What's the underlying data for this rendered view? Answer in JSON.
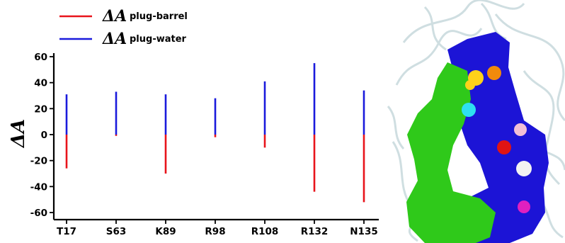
{
  "chart_data": {
    "type": "bar",
    "title": "",
    "xlabel": "",
    "ylabel": "ΔA",
    "ylim": [
      -65,
      65
    ],
    "yticks": [
      60,
      40,
      20,
      0,
      -20,
      -40,
      -60
    ],
    "grid": false,
    "legend_position": "top-left",
    "categories": [
      "T17",
      "S63",
      "K89",
      "R98",
      "R108",
      "R132",
      "N135"
    ],
    "series": [
      {
        "name": "plug-barrel",
        "symbol": "ΔA",
        "color": "#e8141b",
        "values": [
          -26,
          -1,
          -30,
          -2,
          -10,
          -44,
          -52
        ]
      },
      {
        "name": "plug-water",
        "symbol": "ΔA",
        "color": "#1a1adc",
        "values": [
          31,
          33,
          31,
          28,
          41,
          55,
          34
        ]
      }
    ]
  },
  "protein_image": {
    "description_icon": "protein-structure-icon",
    "colors": {
      "background": "#e6eef0",
      "backbone": "#c9dadd",
      "barrel": "#1c14d6",
      "plug": "#2fc91a",
      "residue_yellow": "#ffd21a",
      "residue_orange": "#f28a0c",
      "residue_cyan": "#2ee0f0",
      "residue_pink": "#f2bfd6",
      "residue_red": "#e01414",
      "residue_white": "#f2f2f2",
      "residue_magenta": "#e020c0"
    }
  }
}
